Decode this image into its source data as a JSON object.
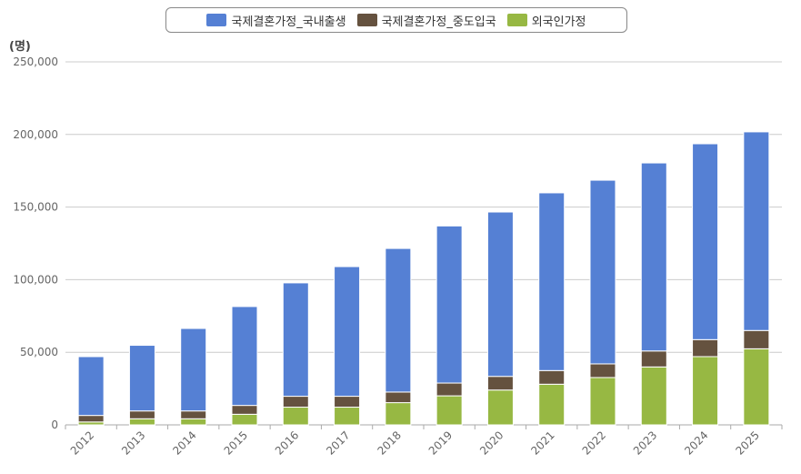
{
  "chart_data": {
    "type": "bar",
    "stacked": true,
    "title": "",
    "xlabel": "",
    "ylabel": "(명)",
    "ylim": [
      0,
      250000
    ],
    "yticks": [
      "0",
      "50,000",
      "100,000",
      "150,000",
      "200,000",
      "250,000"
    ],
    "grid": true,
    "legend_position": "top",
    "categories": [
      "2012",
      "2013",
      "2014",
      "2015",
      "2016",
      "2017",
      "2018",
      "2019",
      "2020",
      "2021",
      "2022",
      "2023",
      "2024",
      "2025"
    ],
    "series": [
      {
        "name": "외국인가정",
        "color": "#97b843",
        "values": [
          2000,
          4200,
          4200,
          7300,
          12200,
          12200,
          15300,
          20000,
          24000,
          28000,
          32600,
          39900,
          47000,
          52400
        ]
      },
      {
        "name": "국제결혼가정_중도입국",
        "color": "#65523f",
        "values": [
          4500,
          5400,
          5400,
          6100,
          7500,
          7500,
          7300,
          8800,
          9400,
          9400,
          9400,
          11000,
          11700,
          12600
        ]
      },
      {
        "name": "국제결혼가정_국내출생",
        "color": "#5580d4",
        "values": [
          40500,
          45200,
          56800,
          68100,
          78100,
          89300,
          98900,
          108200,
          113200,
          122400,
          126500,
          129500,
          134900,
          136800
        ]
      }
    ],
    "legend_order": [
      2,
      1,
      0
    ]
  }
}
